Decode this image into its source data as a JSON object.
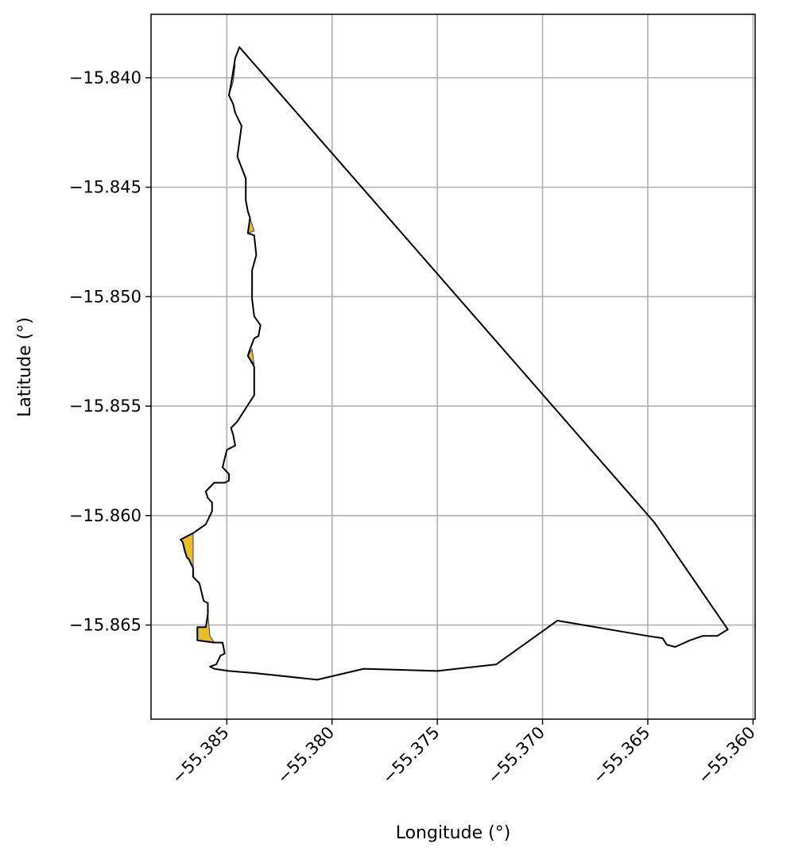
{
  "chart_data": {
    "type": "map",
    "title": "",
    "xlabel": "Longitude (°)",
    "ylabel": "Latitude (°)",
    "xlim": [
      -55.3886,
      -55.3599
    ],
    "ylim": [
      -15.8693,
      -15.8371
    ],
    "grid": true,
    "x_ticks": [
      -55.385,
      -55.38,
      -55.375,
      -55.37,
      -55.365,
      -55.36
    ],
    "x_tick_labels": [
      "−55.385",
      "−55.380",
      "−55.375",
      "−55.370",
      "−55.365",
      "−55.360"
    ],
    "y_ticks": [
      -15.84,
      -15.845,
      -15.85,
      -15.855,
      -15.86,
      -15.865
    ],
    "y_tick_labels": [
      "−15.840",
      "−15.845",
      "−15.850",
      "−15.855",
      "−15.860",
      "−15.865"
    ],
    "colors": {
      "outline": "#000000",
      "highlight_fill": "#E6BE2A",
      "highlight_edge": "#3A33B0",
      "grid": "#b0b0b0"
    },
    "outline": [
      [
        -55.3844,
        -15.8386
      ],
      [
        -55.3846,
        -15.8391
      ],
      [
        -55.3847,
        -15.8397
      ],
      [
        -55.3848,
        -15.8403
      ],
      [
        -55.3849,
        -15.8408
      ],
      [
        -55.3847,
        -15.8412
      ],
      [
        -55.3846,
        -15.8416
      ],
      [
        -55.3843,
        -15.8422
      ],
      [
        -55.3845,
        -15.8436
      ],
      [
        -55.3841,
        -15.8446
      ],
      [
        -55.3841,
        -15.8456
      ],
      [
        -55.384,
        -15.8461
      ],
      [
        -55.3839,
        -15.8464
      ],
      [
        -55.384,
        -15.8471
      ],
      [
        -55.3837,
        -15.8472
      ],
      [
        -55.3836,
        -15.8481
      ],
      [
        -55.3838,
        -15.8488
      ],
      [
        -55.3838,
        -15.8501
      ],
      [
        -55.3837,
        -15.8509
      ],
      [
        -55.3834,
        -15.8513
      ],
      [
        -55.3835,
        -15.8518
      ],
      [
        -55.3837,
        -15.8519
      ],
      [
        -55.3839,
        -15.8524
      ],
      [
        -55.384,
        -15.8527
      ],
      [
        -55.3837,
        -15.8532
      ],
      [
        -55.3837,
        -15.8545
      ],
      [
        -55.3841,
        -15.8551
      ],
      [
        -55.3845,
        -15.8557
      ],
      [
        -55.3848,
        -15.856
      ],
      [
        -55.3847,
        -15.8563
      ],
      [
        -55.3846,
        -15.8568
      ],
      [
        -55.385,
        -15.857
      ],
      [
        -55.3852,
        -15.8578
      ],
      [
        -55.3849,
        -15.8581
      ],
      [
        -55.3849,
        -15.8584
      ],
      [
        -55.3851,
        -15.8585
      ],
      [
        -55.3856,
        -15.8585
      ],
      [
        -55.386,
        -15.8589
      ],
      [
        -55.3859,
        -15.8592
      ],
      [
        -55.3857,
        -15.8594
      ],
      [
        -55.3857,
        -15.8598
      ],
      [
        -55.386,
        -15.8604
      ],
      [
        -55.3866,
        -15.8608
      ],
      [
        -55.3872,
        -15.8611
      ],
      [
        -55.3871,
        -15.8612
      ],
      [
        -55.387,
        -15.8616
      ],
      [
        -55.3869,
        -15.8619
      ],
      [
        -55.3868,
        -15.862
      ],
      [
        -55.3866,
        -15.8624
      ],
      [
        -55.3866,
        -15.8628
      ],
      [
        -55.3863,
        -15.8631
      ],
      [
        -55.3862,
        -15.8635
      ],
      [
        -55.3861,
        -15.8639
      ],
      [
        -55.3859,
        -15.864
      ],
      [
        -55.3859,
        -15.8645
      ],
      [
        -55.386,
        -15.8651
      ],
      [
        -55.3864,
        -15.8651
      ],
      [
        -55.3864,
        -15.8657
      ],
      [
        -55.3856,
        -15.8658
      ],
      [
        -55.3852,
        -15.8658
      ],
      [
        -55.3851,
        -15.8663
      ],
      [
        -55.3853,
        -15.8664
      ],
      [
        -55.3855,
        -15.8668
      ],
      [
        -55.3858,
        -15.8669
      ],
      [
        -55.3856,
        -15.867
      ],
      [
        -55.3849,
        -15.8671
      ],
      [
        -55.3836,
        -15.8672
      ],
      [
        -55.3807,
        -15.8675
      ],
      [
        -55.3785,
        -15.867
      ],
      [
        -55.375,
        -15.8671
      ],
      [
        -55.3722,
        -15.8668
      ],
      [
        -55.3693,
        -15.8648
      ],
      [
        -55.365,
        -15.8655
      ],
      [
        -55.3643,
        -15.8656
      ],
      [
        -55.3641,
        -15.8659
      ],
      [
        -55.3637,
        -15.866
      ],
      [
        -55.363,
        -15.8657
      ],
      [
        -55.3624,
        -15.8655
      ],
      [
        -55.3617,
        -15.8655
      ],
      [
        -55.3612,
        -15.8652
      ],
      [
        -55.3612,
        -15.8652
      ],
      [
        -55.3647,
        -15.8603
      ],
      [
        -55.3844,
        -15.8386
      ]
    ],
    "highlight_areas": [
      [
        [
          -55.3846,
          -15.8394
        ],
        [
          -55.3849,
          -15.8408
        ],
        [
          -55.3847,
          -15.8402
        ]
      ],
      [
        [
          -55.3839,
          -15.8464
        ],
        [
          -55.384,
          -15.8471
        ],
        [
          -55.3837,
          -15.847
        ]
      ],
      [
        [
          -55.3838,
          -15.8524
        ],
        [
          -55.384,
          -15.8527
        ],
        [
          -55.3837,
          -15.8531
        ]
      ],
      [
        [
          -55.3866,
          -15.8608
        ],
        [
          -55.3872,
          -15.8611
        ],
        [
          -55.3871,
          -15.8612
        ],
        [
          -55.387,
          -15.8616
        ],
        [
          -55.3869,
          -15.8619
        ],
        [
          -55.3868,
          -15.862
        ],
        [
          -55.3866,
          -15.8624
        ],
        [
          -55.3866,
          -15.8614
        ]
      ],
      [
        [
          -55.3859,
          -15.8645
        ],
        [
          -55.386,
          -15.8651
        ],
        [
          -55.3864,
          -15.8651
        ],
        [
          -55.3864,
          -15.8657
        ],
        [
          -55.3856,
          -15.8658
        ],
        [
          -55.3858,
          -15.8655
        ]
      ]
    ]
  }
}
